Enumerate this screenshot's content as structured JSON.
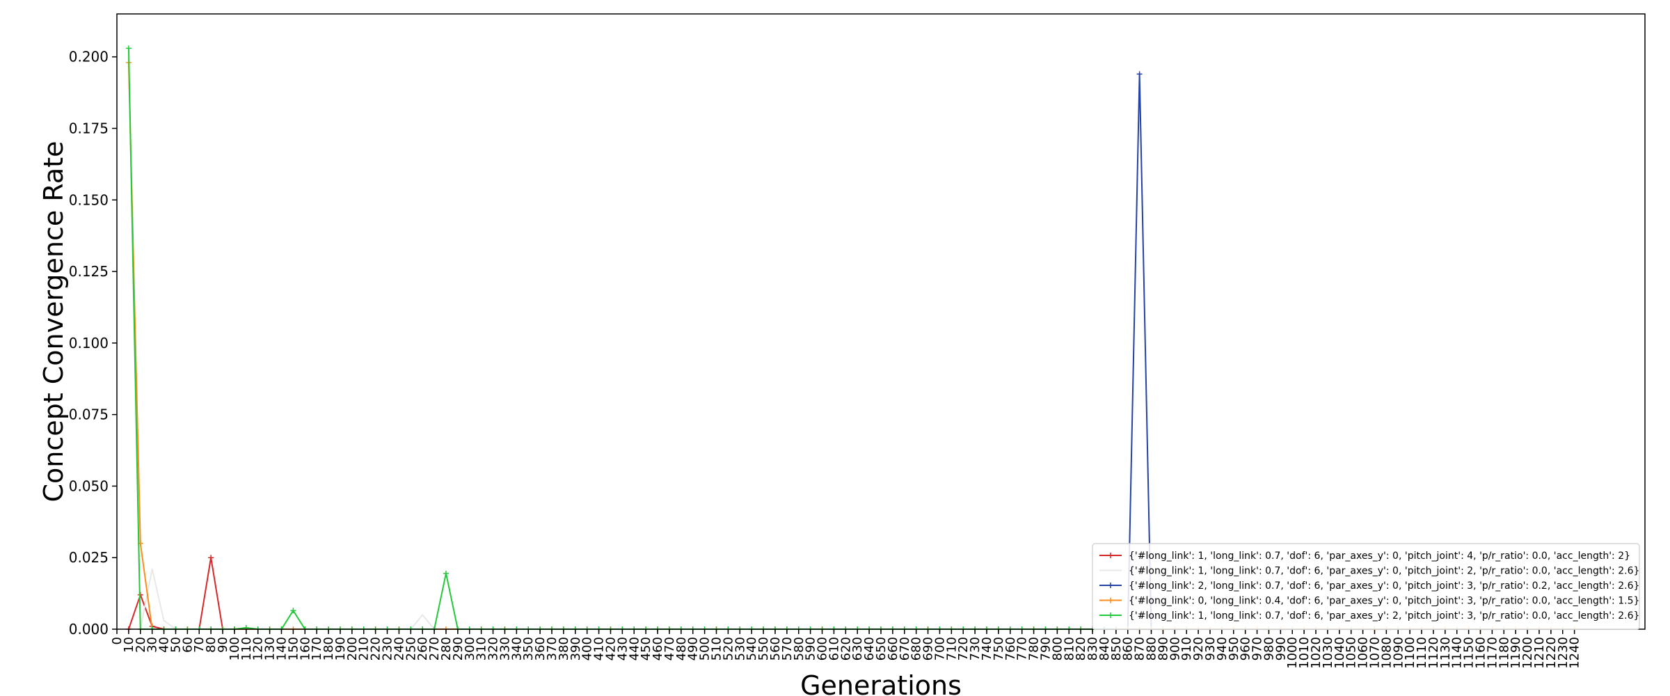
{
  "chart_data": {
    "type": "line",
    "title": "",
    "xlabel": "Generations",
    "ylabel": "Concept Convergence Rate",
    "xlim": [
      0,
      1300
    ],
    "ylim": [
      0,
      0.215
    ],
    "x_ticks": [
      0,
      10,
      20,
      30,
      40,
      50,
      60,
      70,
      80,
      90,
      100,
      110,
      120,
      130,
      140,
      150,
      160,
      170,
      180,
      190,
      200,
      210,
      220,
      230,
      240,
      250,
      260,
      270,
      280,
      290,
      300,
      310,
      320,
      330,
      340,
      350,
      360,
      370,
      380,
      390,
      400,
      410,
      420,
      430,
      440,
      450,
      460,
      470,
      480,
      490,
      500,
      510,
      520,
      530,
      540,
      550,
      560,
      570,
      580,
      590,
      600,
      610,
      620,
      630,
      640,
      650,
      660,
      670,
      680,
      690,
      700,
      710,
      720,
      730,
      740,
      750,
      760,
      770,
      780,
      790,
      800,
      810,
      820,
      830,
      840,
      850,
      860,
      870,
      880,
      890,
      900,
      910,
      920,
      930,
      940,
      950,
      960,
      970,
      980,
      990,
      1000,
      1010,
      1020,
      1030,
      1040,
      1050,
      1060,
      1070,
      1080,
      1090,
      1100,
      1110,
      1120,
      1130,
      1140,
      1150,
      1160,
      1170,
      1180,
      1190,
      1200,
      1210,
      1220,
      1230,
      1240
    ],
    "y_ticks": [
      0.0,
      0.025,
      0.05,
      0.075,
      0.1,
      0.125,
      0.15,
      0.175,
      0.2
    ],
    "y_tick_labels": [
      "0.000",
      "0.025",
      "0.050",
      "0.075",
      "0.100",
      "0.125",
      "0.150",
      "0.175",
      "0.200"
    ],
    "legend_position": "lower-right",
    "grid": false,
    "series": [
      {
        "name": "{'#long_link': 1, 'long_link': 0.7, 'dof': 6, 'par_axes_y': 0, 'pitch_joint': 4, 'p/r_ratio': 0.0, 'acc_length': 2}",
        "color": "#d62728",
        "marker": "+",
        "points": [
          [
            10,
            0.0
          ],
          [
            20,
            0.012
          ],
          [
            30,
            0.001
          ],
          [
            40,
            0.0
          ],
          [
            50,
            0.0
          ],
          [
            60,
            0.0
          ],
          [
            70,
            0.0
          ],
          [
            80,
            0.025
          ],
          [
            90,
            0.0
          ],
          [
            100,
            0.0
          ]
        ]
      },
      {
        "name": "{'#long_link': 1, 'long_link': 0.7, 'dof': 6, 'par_axes_y': 0, 'pitch_joint': 2, 'p/r_ratio': 0.0, 'acc_length': 2.6}",
        "color": "#e8e8e8",
        "marker": "",
        "points": [
          [
            10,
            0.2
          ],
          [
            20,
            0.0
          ],
          [
            30,
            0.021
          ],
          [
            40,
            0.003
          ],
          [
            50,
            0.0
          ],
          [
            250,
            0.0
          ],
          [
            260,
            0.005
          ],
          [
            270,
            0.0
          ],
          [
            280,
            0.0
          ]
        ]
      },
      {
        "name": "{'#long_link': 2, 'long_link': 0.7, 'dof': 6, 'par_axes_y': 0, 'pitch_joint': 3, 'p/r_ratio': 0.2, 'acc_length': 2.6}",
        "color": "#2441a6",
        "marker": "+",
        "points": [
          [
            860,
            0.0
          ],
          [
            870,
            0.194
          ],
          [
            880,
            0.0
          ]
        ]
      },
      {
        "name": "{'#long_link': 0, 'long_link': 0.4, 'dof': 6, 'par_axes_y': 0, 'pitch_joint': 3, 'p/r_ratio': 0.0, 'acc_length': 1.5}",
        "color": "#ff8c1a",
        "marker": "+",
        "points": [
          [
            10,
            0.198
          ],
          [
            20,
            0.03
          ],
          [
            30,
            0.0
          ],
          [
            40,
            0.0
          ],
          [
            50,
            0.0
          ],
          [
            60,
            0.0
          ],
          [
            70,
            0.0
          ],
          [
            80,
            0.0
          ],
          [
            90,
            0.0
          ],
          [
            100,
            0.0
          ],
          [
            110,
            0.0
          ],
          [
            120,
            0.0
          ],
          [
            130,
            0.0
          ],
          [
            140,
            0.0
          ],
          [
            150,
            0.0
          ],
          [
            160,
            0.0
          ],
          [
            170,
            0.0
          ],
          [
            180,
            0.0
          ],
          [
            190,
            0.0
          ],
          [
            200,
            0.0
          ],
          [
            210,
            0.0
          ],
          [
            220,
            0.0
          ],
          [
            230,
            0.0
          ],
          [
            240,
            0.0
          ],
          [
            250,
            0.0
          ],
          [
            260,
            0.0
          ],
          [
            270,
            0.0
          ],
          [
            280,
            0.0
          ],
          [
            290,
            0.0
          ],
          [
            300,
            0.0
          ],
          [
            310,
            0.0
          ],
          [
            320,
            0.0
          ],
          [
            330,
            0.0
          ],
          [
            340,
            0.0
          ],
          [
            350,
            0.0
          ],
          [
            360,
            0.0
          ],
          [
            370,
            0.0
          ],
          [
            380,
            0.0
          ],
          [
            390,
            0.0
          ],
          [
            400,
            0.0
          ],
          [
            410,
            0.0
          ],
          [
            420,
            0.0
          ],
          [
            430,
            0.0
          ],
          [
            440,
            0.0
          ],
          [
            450,
            0.0
          ],
          [
            460,
            0.0
          ],
          [
            470,
            0.0
          ],
          [
            480,
            0.0
          ],
          [
            490,
            0.0
          ],
          [
            500,
            0.0
          ],
          [
            510,
            0.0
          ],
          [
            520,
            0.0
          ],
          [
            530,
            0.0
          ],
          [
            540,
            0.0
          ],
          [
            550,
            0.0
          ],
          [
            560,
            0.0
          ],
          [
            570,
            0.0
          ],
          [
            580,
            0.0
          ],
          [
            590,
            0.0
          ],
          [
            600,
            0.0
          ],
          [
            610,
            0.0
          ],
          [
            620,
            0.0
          ],
          [
            630,
            0.0
          ],
          [
            640,
            0.0
          ],
          [
            650,
            0.0
          ],
          [
            660,
            0.0
          ],
          [
            670,
            0.0
          ],
          [
            680,
            0.0
          ],
          [
            690,
            0.0
          ],
          [
            700,
            0.0
          ],
          [
            710,
            0.0
          ],
          [
            720,
            0.0
          ],
          [
            730,
            0.0
          ],
          [
            740,
            0.0
          ],
          [
            750,
            0.0
          ],
          [
            760,
            0.0
          ],
          [
            770,
            0.0
          ],
          [
            780,
            0.0
          ],
          [
            790,
            0.0
          ],
          [
            800,
            0.0
          ],
          [
            810,
            0.0
          ],
          [
            820,
            0.0
          ],
          [
            830,
            0.0
          ],
          [
            840,
            0.0
          ],
          [
            850,
            0.0
          ],
          [
            860,
            0.0
          ],
          [
            870,
            0.0
          ],
          [
            880,
            0.0
          ],
          [
            890,
            0.0
          ],
          [
            900,
            0.0
          ],
          [
            910,
            0.0
          ],
          [
            920,
            0.0
          ],
          [
            930,
            0.0
          ],
          [
            940,
            0.0
          ],
          [
            950,
            0.0
          ],
          [
            960,
            0.0
          ],
          [
            970,
            0.0
          ],
          [
            980,
            0.0
          ],
          [
            990,
            0.0
          ],
          [
            1000,
            0.0
          ],
          [
            1010,
            0.0
          ],
          [
            1020,
            0.0
          ],
          [
            1030,
            0.0
          ],
          [
            1040,
            0.0
          ],
          [
            1050,
            0.0
          ],
          [
            1060,
            0.0
          ],
          [
            1070,
            0.0
          ],
          [
            1080,
            0.0
          ],
          [
            1090,
            0.0
          ],
          [
            1100,
            0.0
          ],
          [
            1110,
            0.0
          ],
          [
            1120,
            0.0
          ],
          [
            1130,
            0.0
          ],
          [
            1140,
            0.0
          ],
          [
            1150,
            0.0
          ],
          [
            1160,
            0.0
          ],
          [
            1170,
            0.0
          ],
          [
            1180,
            0.0
          ],
          [
            1190,
            0.0
          ],
          [
            1200,
            0.0
          ],
          [
            1210,
            0.0
          ],
          [
            1220,
            0.0
          ],
          [
            1230,
            0.0
          ],
          [
            1240,
            0.0
          ]
        ]
      },
      {
        "name": "{'#long_link': 1, 'long_link': 0.7, 'dof': 6, 'par_axes_y': 2, 'pitch_joint': 3, 'p/r_ratio': 0.0, 'acc_length': 2.6}",
        "color": "#22c93a",
        "marker": "+",
        "points": [
          [
            10,
            0.203
          ],
          [
            20,
            0.0
          ],
          [
            30,
            0.0
          ],
          [
            40,
            0.0
          ],
          [
            50,
            0.0
          ],
          [
            60,
            0.0
          ],
          [
            70,
            0.0
          ],
          [
            80,
            0.0
          ],
          [
            90,
            0.0
          ],
          [
            100,
            0.0
          ],
          [
            110,
            0.0005
          ],
          [
            120,
            0.0
          ],
          [
            130,
            0.0
          ],
          [
            140,
            0.0
          ],
          [
            150,
            0.0065
          ],
          [
            160,
            0.0
          ],
          [
            170,
            0.0
          ],
          [
            180,
            0.0
          ],
          [
            190,
            0.0
          ],
          [
            200,
            0.0
          ],
          [
            210,
            0.0
          ],
          [
            220,
            0.0
          ],
          [
            230,
            0.0
          ],
          [
            240,
            0.0
          ],
          [
            250,
            0.0
          ],
          [
            260,
            0.0
          ],
          [
            270,
            0.0
          ],
          [
            280,
            0.0195
          ],
          [
            290,
            0.0
          ],
          [
            300,
            0.0
          ],
          [
            310,
            0.0
          ],
          [
            320,
            0.0
          ],
          [
            330,
            0.0
          ],
          [
            340,
            0.0
          ],
          [
            350,
            0.0
          ],
          [
            360,
            0.0
          ],
          [
            370,
            0.0
          ],
          [
            380,
            0.0
          ],
          [
            390,
            0.0
          ],
          [
            400,
            0.0
          ],
          [
            410,
            0.0
          ],
          [
            420,
            0.0
          ],
          [
            430,
            0.0
          ],
          [
            440,
            0.0
          ],
          [
            450,
            0.0
          ],
          [
            460,
            0.0
          ],
          [
            470,
            0.0
          ],
          [
            480,
            0.0
          ],
          [
            490,
            0.0
          ],
          [
            500,
            0.0
          ],
          [
            510,
            0.0
          ],
          [
            520,
            0.0
          ],
          [
            530,
            0.0
          ],
          [
            540,
            0.0
          ],
          [
            550,
            0.0
          ],
          [
            560,
            0.0
          ],
          [
            570,
            0.0
          ],
          [
            580,
            0.0
          ],
          [
            590,
            0.0
          ],
          [
            600,
            0.0
          ],
          [
            610,
            0.0
          ],
          [
            620,
            0.0
          ],
          [
            630,
            0.0
          ],
          [
            640,
            0.0
          ],
          [
            650,
            0.0
          ],
          [
            660,
            0.0
          ],
          [
            670,
            0.0
          ],
          [
            680,
            0.0
          ],
          [
            690,
            0.0
          ],
          [
            700,
            0.0
          ],
          [
            710,
            0.0
          ],
          [
            720,
            0.0
          ],
          [
            730,
            0.0
          ],
          [
            740,
            0.0
          ],
          [
            750,
            0.0
          ],
          [
            760,
            0.0
          ],
          [
            770,
            0.0
          ],
          [
            780,
            0.0
          ],
          [
            790,
            0.0
          ],
          [
            800,
            0.0
          ],
          [
            810,
            0.0
          ],
          [
            820,
            0.0
          ],
          [
            830,
            0.0
          ],
          [
            840,
            0.0
          ],
          [
            850,
            0.0
          ]
        ]
      }
    ]
  }
}
